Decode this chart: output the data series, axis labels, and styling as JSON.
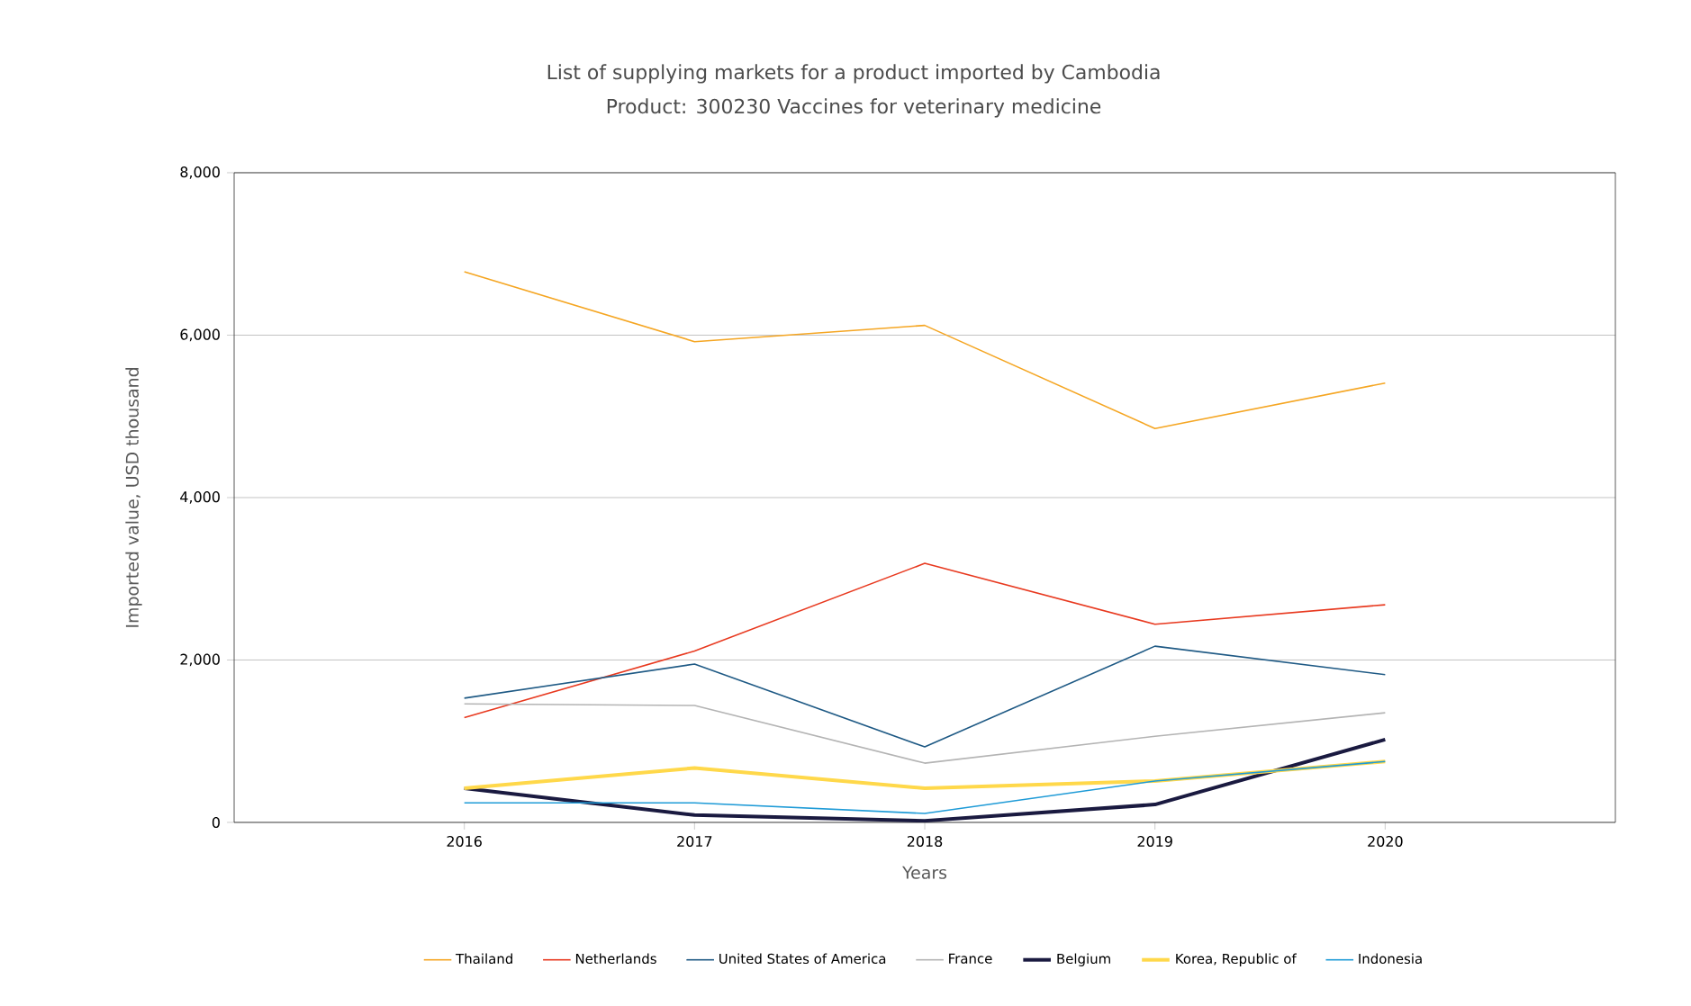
{
  "chart_data": {
    "type": "line",
    "title": "List of supplying markets for a product imported by Cambodia",
    "subtitle": "Product: 300230 Vaccines for veterinary medicine",
    "xlabel": "Years",
    "ylabel": "Imported value, USD thousand",
    "x": [
      2016,
      2017,
      2018,
      2019,
      2020
    ],
    "series": [
      {
        "name": "Thailand",
        "color": "#f5a623",
        "values": [
          6780,
          5920,
          6120,
          4850,
          5410
        ]
      },
      {
        "name": "Netherlands",
        "color": "#e8391f",
        "values": [
          1290,
          2110,
          3190,
          2440,
          2680
        ]
      },
      {
        "name": "United States of America",
        "color": "#1f5a85",
        "values": [
          1530,
          1950,
          930,
          2170,
          1820
        ]
      },
      {
        "name": "France",
        "color": "#b4b4b4",
        "values": [
          1460,
          1440,
          730,
          1060,
          1350
        ]
      },
      {
        "name": "Belgium",
        "color": "#1a1a40",
        "values": [
          420,
          90,
          20,
          220,
          1020
        ]
      },
      {
        "name": "Korea, Republic of",
        "color": "#ffd84a",
        "values": [
          420,
          670,
          420,
          510,
          750
        ]
      },
      {
        "name": "Indonesia",
        "color": "#1f9bd7",
        "values": [
          240,
          240,
          110,
          510,
          750
        ]
      }
    ],
    "xlim": [
      2015,
      2021
    ],
    "xticks": [
      2016,
      2017,
      2018,
      2019,
      2020
    ],
    "ylim": [
      0,
      8000
    ],
    "yticks": [
      {
        "value": 0,
        "label": "0"
      },
      {
        "value": 2000,
        "label": "2,000"
      },
      {
        "value": 4000,
        "label": "4,000"
      },
      {
        "value": 6000,
        "label": "6,000"
      },
      {
        "value": 8000,
        "label": "8,000"
      }
    ],
    "grid": "y",
    "legend": "bottom",
    "marker": "none",
    "line_style": "solid"
  }
}
